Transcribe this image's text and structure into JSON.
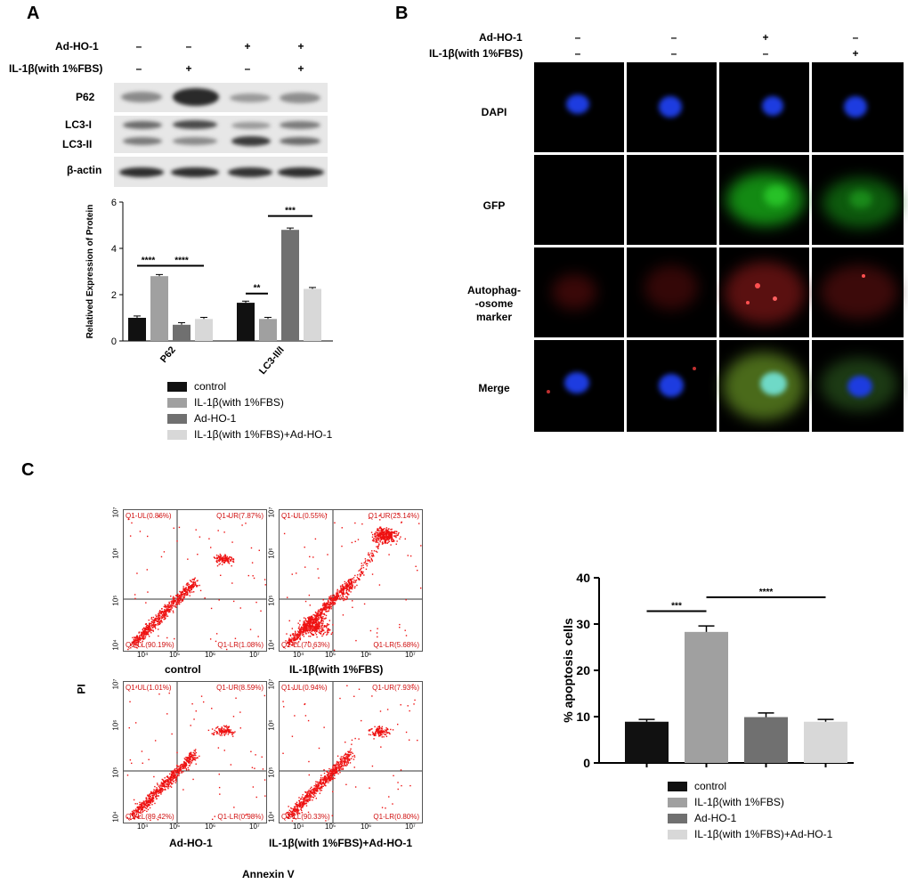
{
  "panels": {
    "A": {
      "letter": "A",
      "treatment_rows": [
        {
          "label": "Ad-HO-1",
          "signs": [
            "–",
            "–",
            "+",
            "+"
          ]
        },
        {
          "label": "IL-1β(with 1%FBS)",
          "signs": [
            "–",
            "+",
            "–",
            "+"
          ]
        }
      ],
      "blot_labels": [
        "P62",
        "LC3-I",
        "LC3-II",
        "β-actin"
      ]
    },
    "B": {
      "letter": "B",
      "treatment_rows": [
        {
          "label": "Ad-HO-1",
          "signs": [
            "–",
            "–",
            "+",
            "–"
          ]
        },
        {
          "label": "IL-1β(with 1%FBS)",
          "signs": [
            "–",
            "–",
            "–",
            "+"
          ]
        }
      ],
      "row_labels": [
        "DAPI",
        "GFP",
        "Autophag-\n-osome\nmarker",
        "Merge"
      ]
    },
    "C": {
      "letter": "C",
      "flow_y_label": "PI",
      "flow_x_label": "Annexin V",
      "flow_plots": [
        {
          "title": "control",
          "UL": "Q1-UL(0.86%)",
          "UR": "Q1-UR(7.87%)",
          "LL": "Q1-LL(90.19%)",
          "LR": "Q1-LR(1.08%)"
        },
        {
          "title": "IL-1β(with 1%FBS)",
          "UL": "Q1-UL(0.55%)",
          "UR": "Q1-UR(23.14%)",
          "LL": "Q1-LL(70.63%)",
          "LR": "Q1-LR(5.68%)"
        },
        {
          "title": "Ad-HO-1",
          "UL": "Q1-UL(1.01%)",
          "UR": "Q1-UR(8.59%)",
          "LL": "Q1-LL(89.42%)",
          "LR": "Q1-LR(0.98%)"
        },
        {
          "title": "IL-1β(with 1%FBS)+Ad-HO-1",
          "UL": "Q1-UL(0.94%)",
          "UR": "Q1-UR(7.93%)",
          "LL": "Q1-LL(90.33%)",
          "LR": "Q1-LR(0.80%)"
        }
      ],
      "flow_y_ticks": [
        "10⁷",
        "10⁶",
        "10⁵",
        "10⁴"
      ],
      "flow_x_ticks": [
        "10⁴",
        "10⁵",
        "10⁶",
        "10⁷"
      ]
    }
  },
  "chart_data": [
    {
      "type": "bar",
      "ylabel": "Relatived Expression of Protein",
      "ylim": [
        0,
        6
      ],
      "yticks": [
        "0",
        "2",
        "4",
        "6"
      ],
      "categories": [
        "P62",
        "LC3-II/I"
      ],
      "series": [
        {
          "name": "control",
          "color": "#111111",
          "values": [
            1.0,
            1.65
          ],
          "errors": [
            0.08,
            0.07
          ]
        },
        {
          "name": "IL-1β(with 1%FBS)",
          "color": "#a0a0a0",
          "values": [
            2.8,
            0.95
          ],
          "errors": [
            0.07,
            0.07
          ]
        },
        {
          "name": "Ad-HO-1",
          "color": "#707070",
          "values": [
            0.7,
            4.8
          ],
          "errors": [
            0.09,
            0.08
          ]
        },
        {
          "name": "IL-1β(with 1%FBS)+Ad-HO-1",
          "color": "#d8d8d8",
          "values": [
            0.95,
            2.25
          ],
          "errors": [
            0.07,
            0.06
          ]
        }
      ],
      "annotations": [
        "****",
        "****",
        "**",
        "***"
      ]
    },
    {
      "type": "bar",
      "ylabel": "% apoptosis cells",
      "ylim": [
        0,
        40
      ],
      "yticks": [
        "0",
        "10",
        "20",
        "30",
        "40"
      ],
      "categories": [
        "control",
        "IL-1β(with 1%FBS)",
        "Ad-HO-1",
        "IL-1β(with 1%FBS)+Ad-HO-1"
      ],
      "values": [
        8.9,
        28.3,
        9.9,
        8.9
      ],
      "errors": [
        0.5,
        1.3,
        0.9,
        0.5
      ],
      "colors": [
        "#111111",
        "#a0a0a0",
        "#707070",
        "#d8d8d8"
      ],
      "annotations": [
        "***",
        "****"
      ]
    }
  ],
  "legend": [
    "control",
    "IL-1β(with 1%FBS)",
    "Ad-HO-1",
    "IL-1β(with 1%FBS)+Ad-HO-1"
  ]
}
